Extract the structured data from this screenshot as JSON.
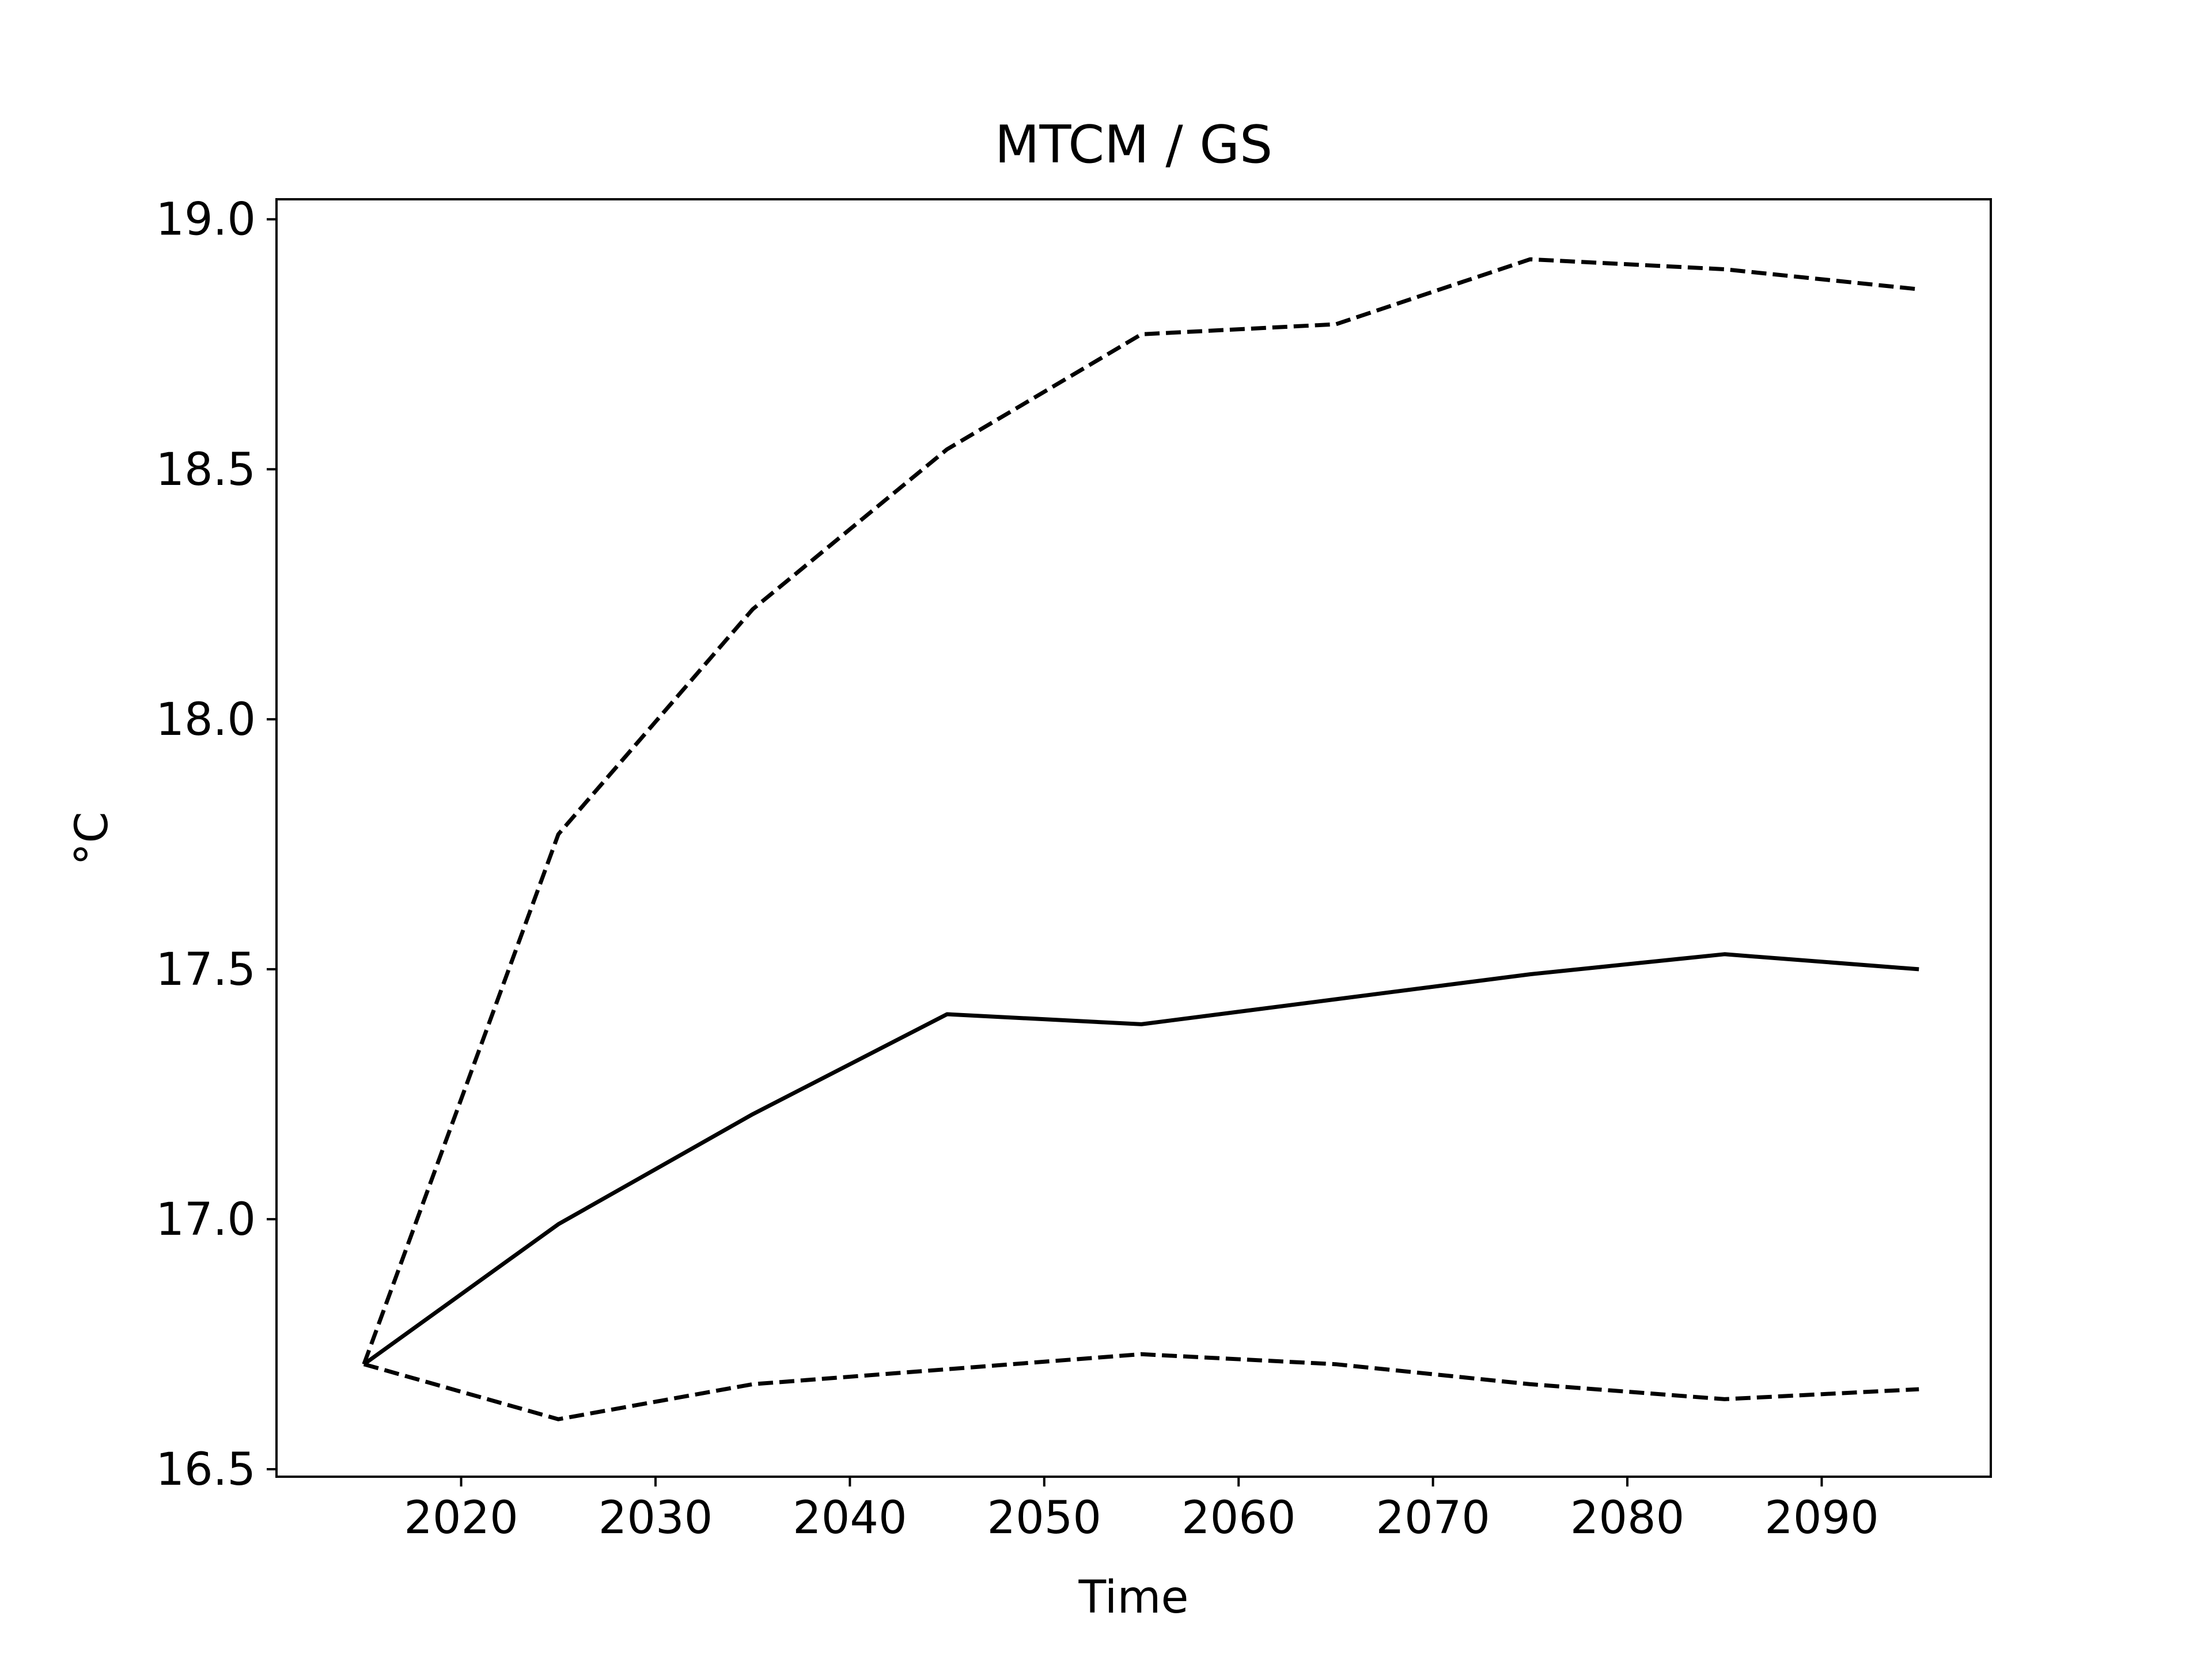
{
  "chart_data": {
    "type": "line",
    "title": "MTCM / GS",
    "xlabel": "Time",
    "ylabel": "°C",
    "xlim": [
      2010.5,
      2098.7
    ],
    "ylim": [
      16.485,
      19.04
    ],
    "xticks": [
      2020,
      2030,
      2040,
      2050,
      2060,
      2070,
      2080,
      2090
    ],
    "xtick_labels": [
      "2020",
      "2030",
      "2040",
      "2050",
      "2060",
      "2070",
      "2080",
      "2090"
    ],
    "yticks": [
      16.5,
      17.0,
      17.5,
      18.0,
      18.5,
      19.0
    ],
    "ytick_labels": [
      "16.5",
      "17.0",
      "17.5",
      "18.0",
      "18.5",
      "19.0"
    ],
    "grid": false,
    "legend": "none",
    "x": [
      2015,
      2025,
      2035,
      2045,
      2055,
      2065,
      2075,
      2085,
      2095
    ],
    "series": [
      {
        "style": "dashed",
        "color": "#000000",
        "values": [
          16.71,
          17.77,
          18.22,
          18.54,
          18.77,
          18.79,
          18.92,
          18.9,
          18.86
        ]
      },
      {
        "style": "solid",
        "color": "#000000",
        "values": [
          16.71,
          16.99,
          17.21,
          17.41,
          17.39,
          17.44,
          17.49,
          17.53,
          17.5
        ]
      },
      {
        "style": "dashed",
        "color": "#000000",
        "values": [
          16.71,
          16.6,
          16.67,
          16.7,
          16.73,
          16.71,
          16.67,
          16.64,
          16.66
        ]
      }
    ]
  }
}
